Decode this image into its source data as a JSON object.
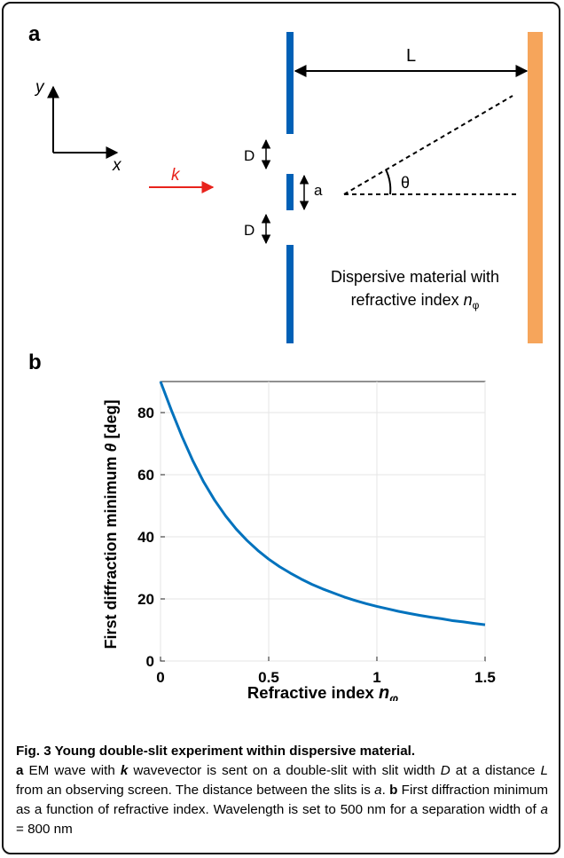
{
  "figure": {
    "panel_a_label": "a",
    "panel_b_label": "b",
    "diagram": {
      "y_axis_label": "y",
      "x_axis_label": "x",
      "wave_label": "k",
      "slit_label_D_top": "D",
      "slit_label_D_bottom": "D",
      "separation_label": "a",
      "distance_label": "L",
      "angle_label": "θ",
      "material_line1": "Dispersive material with",
      "material_line2": "refractive index ",
      "material_symbol": "n",
      "material_subscript": "φ",
      "colors": {
        "slit": "#0060b6",
        "screen": "#f6a55b",
        "wave": "#e8231c"
      }
    },
    "caption": {
      "title": "Fig. 3 Young double-slit experiment within dispersive material.",
      "part_a_label": "a",
      "part_a_text_1": " EM wave with ",
      "part_a_k": "k",
      "part_a_text_2": " wavevector is sent on a double-slit with slit width ",
      "part_a_D": "D",
      "part_a_text_3": " at a distance ",
      "part_a_L": "L",
      "part_a_text_4": " from an observing screen. The distance between the slits is ",
      "part_a_a": "a",
      "part_a_text_5": ". ",
      "part_b_label": "b",
      "part_b_text_1": " First diffraction minimum as a function of refractive index. Wavelength is set to 500 nm for a separation width of ",
      "part_b_a": "a",
      "part_b_text_2": " = 800 nm"
    }
  },
  "chart_data": {
    "type": "line",
    "xlabel": "Refractive index ",
    "xlabel_symbol": "n",
    "xlabel_subscript": "φ",
    "ylabel": "First diffraction minimum ",
    "ylabel_symbol": "θ",
    "ylabel_unit": " [deg]",
    "xlim": [
      0,
      1.5
    ],
    "ylim": [
      0,
      90
    ],
    "xticks": [
      0,
      0.5,
      1,
      1.5
    ],
    "xtick_labels": [
      "0",
      "0.5",
      "1",
      "1.5"
    ],
    "yticks": [
      0,
      20,
      40,
      60,
      80
    ],
    "ytick_labels": [
      "0",
      "20",
      "40",
      "60",
      "80"
    ],
    "grid": true,
    "series": [
      {
        "color": "#0072bd",
        "x": [
          0.0,
          0.05,
          0.1,
          0.15,
          0.2,
          0.25,
          0.3,
          0.35,
          0.4,
          0.45,
          0.5,
          0.55,
          0.6,
          0.65,
          0.7,
          0.75,
          0.8,
          0.85,
          0.9,
          0.95,
          1.0,
          1.05,
          1.1,
          1.15,
          1.2,
          1.25,
          1.3,
          1.35,
          1.4,
          1.45,
          1.5
        ],
        "y": [
          90,
          80.8,
          72.2,
          64.4,
          57.6,
          51.8,
          46.8,
          42.5,
          38.8,
          35.6,
          32.8,
          30.4,
          28.3,
          26.4,
          24.7,
          23.2,
          21.9,
          20.6,
          19.5,
          18.5,
          17.6,
          16.8,
          16.0,
          15.3,
          14.7,
          14.1,
          13.6,
          13.0,
          12.6,
          12.1,
          11.7
        ]
      }
    ]
  }
}
